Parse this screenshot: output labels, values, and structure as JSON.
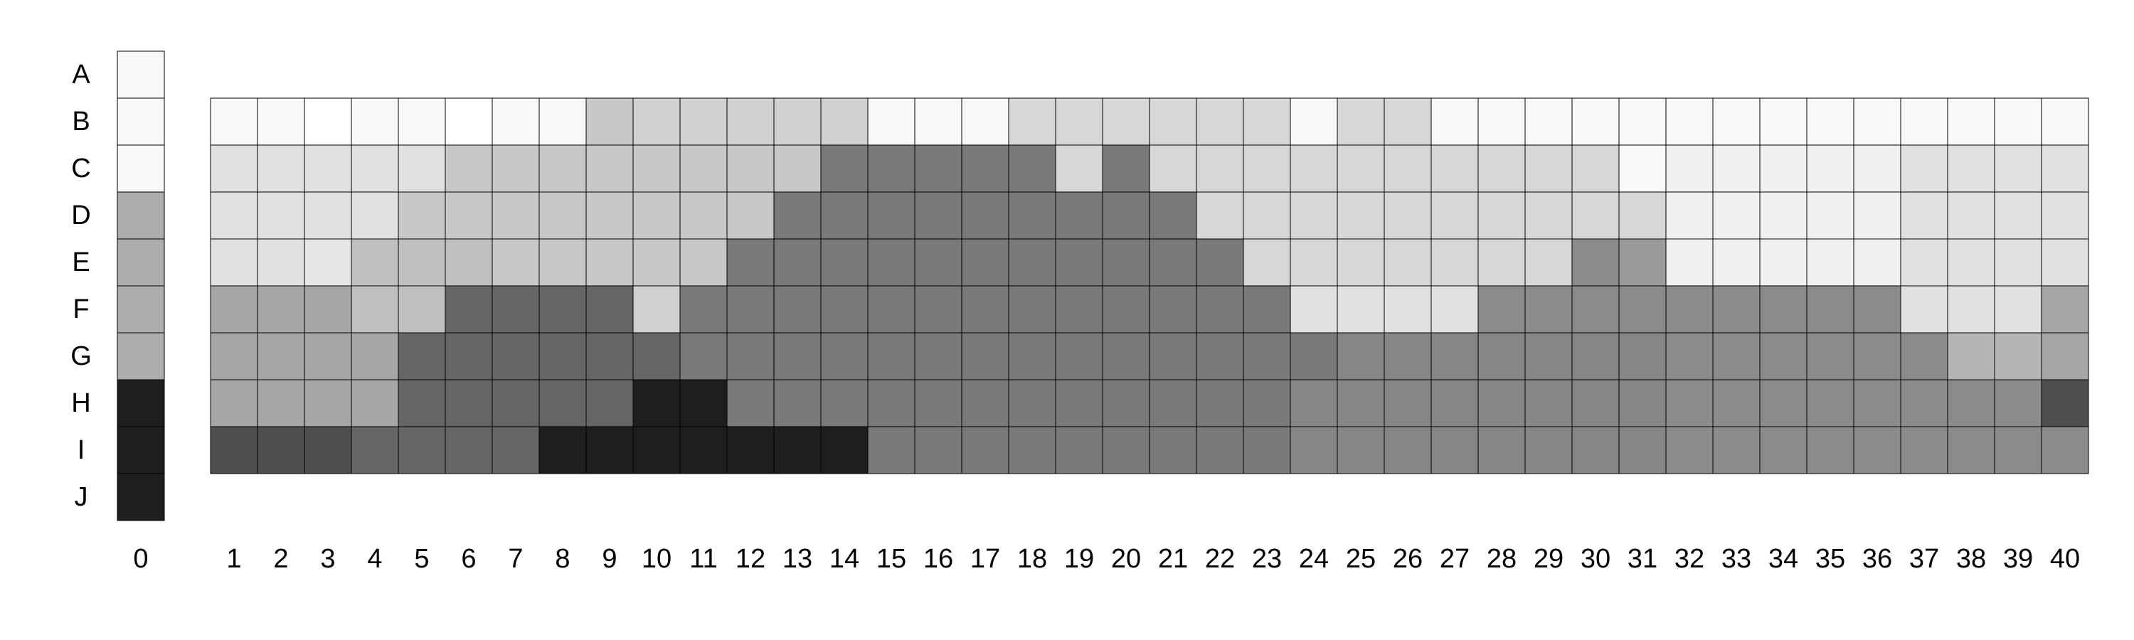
{
  "chart_data": {
    "type": "heatmap",
    "title": "",
    "xlabel": "",
    "ylabel": "",
    "rows": [
      "A",
      "B",
      "C",
      "D",
      "E",
      "F",
      "G",
      "H",
      "I",
      "J"
    ],
    "legend_column": {
      "label": "0",
      "colors": [
        "#f8f8f8",
        "#f8f8f8",
        "#fafafa",
        "#adadad",
        "#adadad",
        "#adadad",
        "#adadad",
        "#1e1e1e",
        "#1e1e1e",
        "#1e1e1e"
      ]
    },
    "columns": [
      "1",
      "2",
      "3",
      "4",
      "5",
      "6",
      "7",
      "8",
      "9",
      "10",
      "11",
      "12",
      "13",
      "14",
      "15",
      "16",
      "17",
      "18",
      "19",
      "20",
      "21",
      "22",
      "23",
      "24",
      "25",
      "26",
      "27",
      "28",
      "29",
      "30",
      "31",
      "32",
      "33",
      "34",
      "35",
      "36",
      "37",
      "38",
      "39",
      "40"
    ],
    "grid_rows": [
      "B",
      "C",
      "D",
      "E",
      "F",
      "G",
      "H",
      "I"
    ],
    "colors": {
      "W": "#ffffff",
      "V": "#f8f8f8",
      "U": "#f0f0f0",
      "T": "#e6e6e6",
      "P": "#e0e0e0",
      "L": "#d7d7d7",
      "K": "#d0d0d0",
      "M": "#c8c8c8",
      "S": "#bfbfbf",
      "R": "#b5b5b5",
      "A": "#a6a6a6",
      "Q": "#9a9a9a",
      "N": "#8b8b8b",
      "O": "#868686",
      "Y": "#7a7a7a",
      "G": "#666666",
      "X": "#4e4e4e",
      "D": "#1e1e1e"
    },
    "grid": [
      [
        "V",
        "V",
        "W",
        "V",
        "V",
        "W",
        "V",
        "V",
        "M",
        "K",
        "K",
        "K",
        "K",
        "K",
        "V",
        "V",
        "V",
        "L",
        "L",
        "L",
        "L",
        "L",
        "L",
        "V",
        "L",
        "L",
        "V",
        "V",
        "V",
        "V",
        "V",
        "V",
        "V",
        "V",
        "V",
        "V",
        "V",
        "V",
        "V",
        "V"
      ],
      [
        "P",
        "P",
        "P",
        "P",
        "P",
        "M",
        "M",
        "M",
        "M",
        "M",
        "M",
        "M",
        "M",
        "Y",
        "Y",
        "Y",
        "Y",
        "Y",
        "L",
        "Y",
        "L",
        "L",
        "L",
        "L",
        "L",
        "L",
        "L",
        "L",
        "L",
        "L",
        "V",
        "U",
        "U",
        "U",
        "U",
        "U",
        "P",
        "P",
        "P",
        "P"
      ],
      [
        "P",
        "P",
        "P",
        "P",
        "M",
        "M",
        "M",
        "M",
        "M",
        "M",
        "M",
        "M",
        "Y",
        "Y",
        "Y",
        "Y",
        "Y",
        "Y",
        "Y",
        "Y",
        "Y",
        "L",
        "L",
        "L",
        "L",
        "L",
        "L",
        "L",
        "L",
        "L",
        "L",
        "U",
        "U",
        "U",
        "U",
        "U",
        "P",
        "P",
        "P",
        "P"
      ],
      [
        "P",
        "P",
        "T",
        "S",
        "S",
        "S",
        "M",
        "M",
        "M",
        "M",
        "M",
        "Y",
        "Y",
        "Y",
        "Y",
        "Y",
        "Y",
        "Y",
        "Y",
        "Y",
        "Y",
        "Y",
        "L",
        "L",
        "L",
        "L",
        "L",
        "L",
        "L",
        "N",
        "Q",
        "U",
        "U",
        "U",
        "U",
        "U",
        "P",
        "P",
        "P",
        "P"
      ],
      [
        "A",
        "A",
        "A",
        "S",
        "S",
        "G",
        "G",
        "G",
        "G",
        "K",
        "Y",
        "Y",
        "Y",
        "Y",
        "Y",
        "Y",
        "Y",
        "Y",
        "Y",
        "Y",
        "Y",
        "Y",
        "Y",
        "P",
        "P",
        "P",
        "P",
        "N",
        "N",
        "N",
        "N",
        "N",
        "N",
        "N",
        "N",
        "N",
        "P",
        "P",
        "P",
        "A"
      ],
      [
        "A",
        "A",
        "A",
        "A",
        "G",
        "G",
        "G",
        "G",
        "G",
        "G",
        "Y",
        "Y",
        "Y",
        "Y",
        "Y",
        "Y",
        "Y",
        "Y",
        "Y",
        "Y",
        "Y",
        "Y",
        "Y",
        "Y",
        "O",
        "O",
        "O",
        "O",
        "O",
        "O",
        "O",
        "N",
        "N",
        "N",
        "N",
        "N",
        "N",
        "R",
        "R",
        "A"
      ],
      [
        "A",
        "A",
        "A",
        "A",
        "G",
        "G",
        "G",
        "G",
        "G",
        "D",
        "D",
        "Y",
        "Y",
        "Y",
        "Y",
        "Y",
        "Y",
        "Y",
        "Y",
        "Y",
        "Y",
        "Y",
        "Y",
        "O",
        "O",
        "O",
        "O",
        "O",
        "O",
        "O",
        "O",
        "N",
        "N",
        "N",
        "N",
        "N",
        "N",
        "N",
        "N",
        "X"
      ],
      [
        "X",
        "X",
        "X",
        "G",
        "G",
        "G",
        "G",
        "D",
        "D",
        "D",
        "D",
        "D",
        "D",
        "D",
        "Y",
        "Y",
        "Y",
        "Y",
        "Y",
        "Y",
        "Y",
        "Y",
        "Y",
        "O",
        "O",
        "O",
        "O",
        "O",
        "O",
        "O",
        "O",
        "N",
        "N",
        "N",
        "N",
        "N",
        "N",
        "N",
        "N",
        "N"
      ]
    ]
  }
}
